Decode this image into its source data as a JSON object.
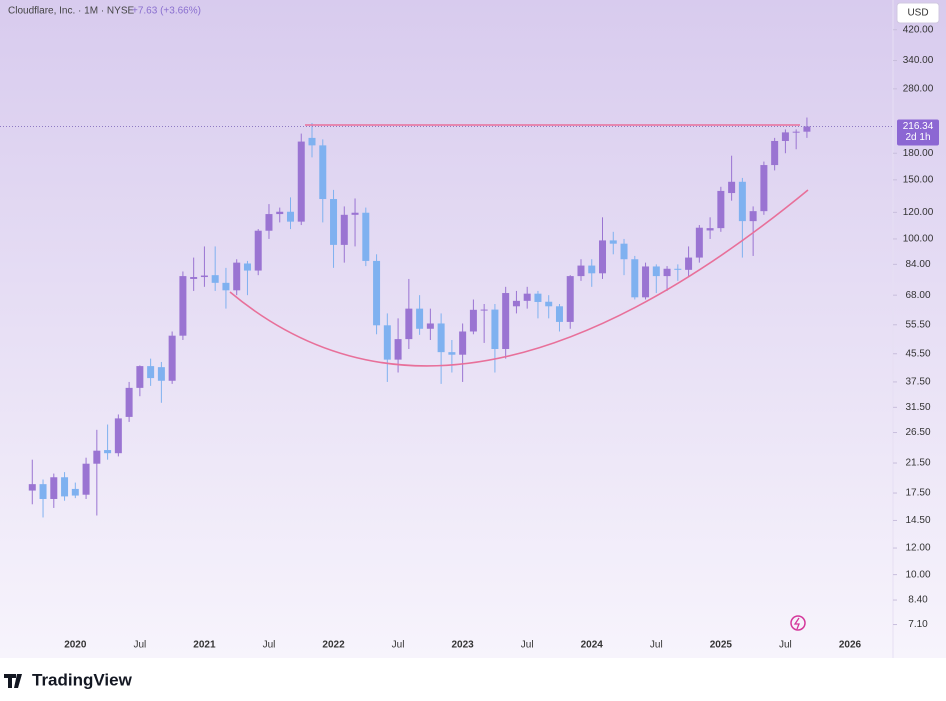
{
  "chart_data": {
    "type": "candlestick",
    "title": "Cloudflare, Inc. · 1M · NYSE",
    "change": "+7.63 (+3.66%)",
    "currency": "USD",
    "brand": "TradingView",
    "log_scale": true,
    "up_color": "#9a74d2",
    "down_color": "#7fb1f0",
    "x": [
      "2019-09",
      "2019-10",
      "2019-11",
      "2019-12",
      "2020-01",
      "2020-02",
      "2020-03",
      "2020-04",
      "2020-05",
      "2020-06",
      "2020-07",
      "2020-08",
      "2020-09",
      "2020-10",
      "2020-11",
      "2020-12",
      "2021-01",
      "2021-02",
      "2021-03",
      "2021-04",
      "2021-05",
      "2021-06",
      "2021-07",
      "2021-08",
      "2021-09",
      "2021-10",
      "2021-11",
      "2021-12",
      "2022-01",
      "2022-02",
      "2022-03",
      "2022-04",
      "2022-05",
      "2022-06",
      "2022-07",
      "2022-08",
      "2022-09",
      "2022-10",
      "2022-11",
      "2022-12",
      "2023-01",
      "2023-02",
      "2023-03",
      "2023-04",
      "2023-05",
      "2023-06",
      "2023-07",
      "2023-08",
      "2023-09",
      "2023-10",
      "2023-11",
      "2023-12",
      "2024-01",
      "2024-02",
      "2024-03",
      "2024-04",
      "2024-05",
      "2024-06",
      "2024-07",
      "2024-08",
      "2024-09",
      "2024-10",
      "2024-11",
      "2024-12",
      "2025-01",
      "2025-02",
      "2025-03",
      "2025-04",
      "2025-05",
      "2025-06",
      "2025-07",
      "2025-08",
      "2025-09"
    ],
    "open": [
      17.8,
      18.6,
      16.8,
      19.5,
      18.0,
      17.3,
      21.4,
      23.5,
      23.0,
      29.5,
      36.0,
      41.8,
      41.5,
      37.8,
      51.5,
      76.0,
      77.0,
      78.0,
      74.0,
      70.3,
      84.5,
      80.5,
      105.8,
      118.6,
      120.5,
      112.6,
      200.0,
      190.0,
      131.5,
      96.0,
      118.0,
      119.7,
      86.0,
      55.3,
      43.7,
      50.3,
      62.0,
      54.0,
      56.0,
      46.0,
      45.2,
      53.0,
      61.5,
      61.6,
      47.0,
      63.0,
      65.4,
      68.7,
      65.0,
      63.0,
      56.6,
      77.5,
      83.3,
      79.0,
      99.0,
      96.8,
      87.0,
      67.0,
      82.8,
      77.5,
      81.5,
      80.9,
      88.0,
      106.0,
      107.7,
      137.0,
      148.0,
      113.0,
      121.0,
      166.0,
      195.8,
      207.7,
      208.71
    ],
    "high": [
      22.0,
      19.2,
      20.0,
      20.2,
      18.8,
      22.3,
      27.0,
      28.0,
      30.0,
      37.5,
      42.0,
      44.0,
      43.0,
      53.0,
      80.0,
      88.0,
      95.0,
      95.0,
      82.0,
      87.0,
      86.0,
      107.0,
      127.0,
      124.0,
      133.0,
      206.0,
      221.6,
      198.0,
      140.0,
      125.0,
      132.0,
      124.0,
      90.0,
      60.0,
      58.0,
      76.0,
      68.0,
      62.0,
      60.0,
      50.0,
      56.0,
      66.0,
      64.0,
      64.0,
      72.0,
      70.0,
      72.0,
      70.0,
      68.0,
      64.0,
      78.0,
      87.0,
      87.0,
      116.0,
      105.0,
      100.0,
      89.0,
      85.0,
      84.0,
      83.0,
      84.0,
      95.0,
      110.0,
      116.0,
      143.0,
      177.0,
      152.0,
      125.0,
      170.0,
      200.0,
      212.0,
      212.0,
      230.0
    ],
    "low": [
      16.2,
      14.8,
      15.8,
      16.6,
      16.9,
      16.8,
      15.0,
      22.0,
      22.5,
      28.5,
      34.0,
      36.5,
      32.5,
      37.0,
      50.0,
      70.0,
      72.0,
      70.0,
      62.0,
      68.0,
      68.0,
      78.0,
      100.0,
      112.0,
      107.0,
      110.0,
      175.0,
      112.0,
      82.0,
      85.0,
      95.0,
      83.0,
      52.0,
      37.5,
      40.0,
      47.0,
      51.8,
      50.0,
      37.0,
      40.0,
      37.5,
      52.0,
      49.0,
      40.0,
      44.0,
      60.0,
      62.0,
      58.0,
      58.0,
      53.0,
      54.0,
      75.0,
      72.0,
      76.0,
      90.0,
      78.0,
      66.0,
      66.0,
      69.0,
      70.0,
      75.0,
      77.0,
      85.0,
      100.0,
      105.0,
      130.0,
      88.0,
      89.0,
      118.0,
      160.0,
      180.0,
      185.0,
      200.0
    ],
    "close": [
      18.6,
      16.8,
      19.5,
      17.1,
      17.2,
      21.4,
      23.4,
      23.0,
      29.2,
      36.0,
      41.8,
      38.5,
      37.8,
      51.5,
      77.5,
      77.0,
      77.8,
      74.0,
      70.3,
      85.0,
      80.5,
      105.8,
      118.6,
      120.5,
      112.6,
      195.0,
      190.0,
      131.5,
      96.0,
      118.0,
      119.7,
      86.0,
      55.3,
      43.7,
      50.3,
      62.0,
      54.0,
      56.0,
      46.0,
      45.2,
      53.0,
      61.5,
      61.6,
      47.0,
      69.0,
      65.4,
      68.7,
      64.9,
      63.0,
      56.6,
      77.5,
      83.3,
      79.0,
      99.0,
      96.8,
      87.0,
      67.0,
      82.8,
      77.5,
      81.5,
      80.9,
      88.0,
      108.0,
      107.7,
      139.0,
      148.0,
      113.0,
      121.0,
      166.0,
      195.8,
      207.7,
      208.71,
      216.34
    ],
    "last_price": {
      "value": 216.34,
      "label": "216.34"
    },
    "countdown": "2d 1h",
    "xlim": [
      "2019-06",
      "2026-05"
    ],
    "xticks": [
      {
        "value": "2020-01",
        "label": "2020"
      },
      {
        "value": "2020-07",
        "label": "Jul"
      },
      {
        "value": "2021-01",
        "label": "2021"
      },
      {
        "value": "2021-07",
        "label": "Jul"
      },
      {
        "value": "2022-01",
        "label": "2022"
      },
      {
        "value": "2022-07",
        "label": "Jul"
      },
      {
        "value": "2023-01",
        "label": "2023"
      },
      {
        "value": "2023-07",
        "label": "Jul"
      },
      {
        "value": "2024-01",
        "label": "2024"
      },
      {
        "value": "2024-07",
        "label": "Jul"
      },
      {
        "value": "2025-01",
        "label": "2025"
      },
      {
        "value": "2025-07",
        "label": "Jul"
      },
      {
        "value": "2026-01",
        "label": "2026"
      }
    ],
    "ylim": [
      6.7,
      515
    ],
    "yticks": [
      {
        "value": 420,
        "label": "420.00"
      },
      {
        "value": 340,
        "label": "340.00"
      },
      {
        "value": 280,
        "label": "280.00"
      },
      {
        "value": 180,
        "label": "180.00"
      },
      {
        "value": 150,
        "label": "150.00"
      },
      {
        "value": 120,
        "label": "120.00"
      },
      {
        "value": 100,
        "label": "100.00"
      },
      {
        "value": 84,
        "label": "84.00"
      },
      {
        "value": 68,
        "label": "68.00"
      },
      {
        "value": 55.5,
        "label": "55.50"
      },
      {
        "value": 45.5,
        "label": "45.50"
      },
      {
        "value": 37.5,
        "label": "37.50"
      },
      {
        "value": 31.5,
        "label": "31.50"
      },
      {
        "value": 26.5,
        "label": "26.50"
      },
      {
        "value": 21.5,
        "label": "21.50"
      },
      {
        "value": 17.5,
        "label": "17.50"
      },
      {
        "value": 14.5,
        "label": "14.50"
      },
      {
        "value": 12,
        "label": "12.00"
      },
      {
        "value": 10,
        "label": "10.00"
      },
      {
        "value": 8.4,
        "label": "8.40"
      },
      {
        "value": 7.1,
        "label": "7.10"
      }
    ]
  }
}
